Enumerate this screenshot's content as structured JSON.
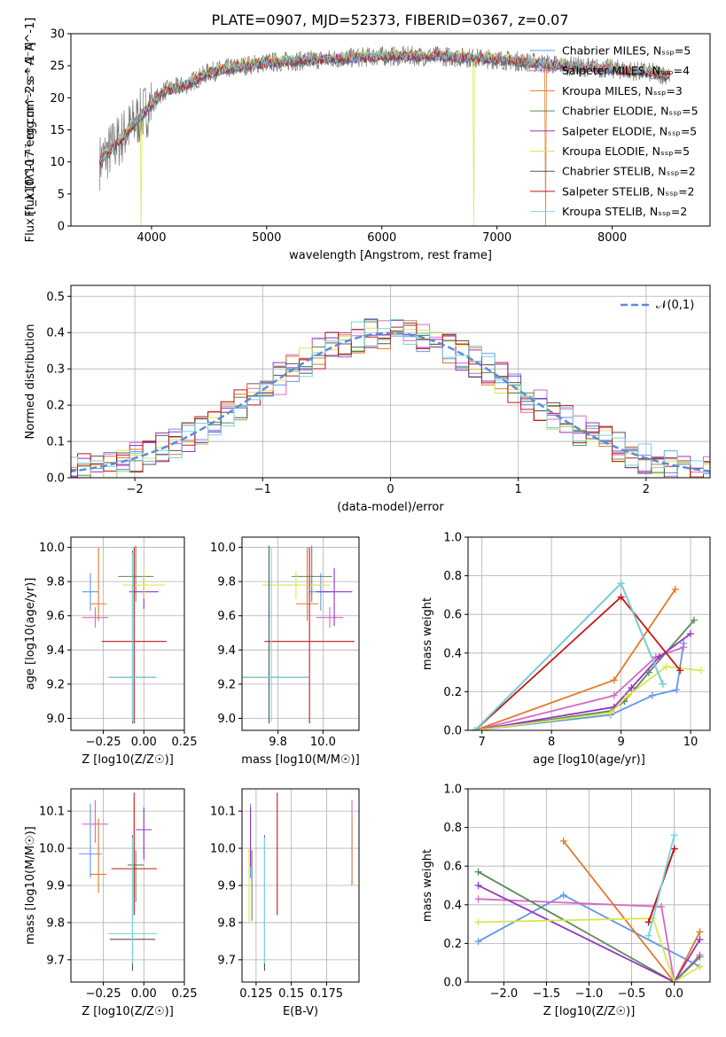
{
  "title": "PLATE=0907, MJD=52373, FIBERID=0367, z=0.07",
  "colors": {
    "chabrier_miles": "#6495ed",
    "salpeter_miles": "#d967c9",
    "kroupa_miles": "#e2782a",
    "chabrier_elodie": "#5a8a57",
    "salpeter_elodie": "#9434c2",
    "kroupa_elodie": "#d7e84f",
    "chabrier_stelib": "#555555",
    "salpeter_stelib": "#c41818",
    "kroupa_stelib": "#74d4df"
  },
  "chart_data": [
    {
      "id": "spectrum",
      "type": "line",
      "title": "PLATE=0907, MJD=52373, FIBERID=0367, z=0.07",
      "xlabel": "wavelength [Angstrom, rest frame]",
      "ylabel": "Flux [f_λ10^-17 erg cm^-2 s^-1 A^-1]",
      "xlim": [
        3300,
        8850
      ],
      "ylim": [
        0,
        30
      ],
      "xticks": [
        4000,
        5000,
        6000,
        7000,
        8000
      ],
      "yticks": [
        0,
        5,
        10,
        15,
        20,
        25,
        30
      ],
      "legend_position": "top-right",
      "legend": [
        "Chabrier MILES, N_SSP=5",
        "Salpeter MILES, N_SSP=4",
        "Kroupa MILES, N_SSP=3",
        "Chabrier ELODIE, N_SSP=5",
        "Salpeter ELODIE, N_SSP=5",
        "Kroupa ELODIE, N_SSP=5",
        "Chabrier STELIB, N_SSP=2",
        "Salpeter STELIB, N_SSP=2",
        "Kroupa STELIB, N_SSP=2"
      ],
      "continuum": {
        "x": [
          3550,
          3700,
          3800,
          3900,
          4000,
          4100,
          4300,
          4500,
          4800,
          5000,
          5500,
          6000,
          6500,
          7000,
          7300,
          7600,
          8000,
          8300,
          8500
        ],
        "y": [
          10,
          13,
          15,
          17,
          19,
          21,
          22,
          24,
          25,
          25.5,
          26,
          26.5,
          26.5,
          26,
          25.5,
          25,
          24.5,
          24,
          23.5
        ]
      },
      "dips": [
        [
          3910,
          0
        ],
        [
          6800,
          0
        ],
        [
          7420,
          0
        ]
      ]
    },
    {
      "id": "residuals",
      "type": "bar",
      "xlabel": "(data-model)/error",
      "ylabel": "Normed distribution",
      "xlim": [
        -2.5,
        2.5
      ],
      "ylim": [
        0,
        0.53
      ],
      "xticks": [
        -2,
        -1,
        0,
        1,
        2
      ],
      "yticks": [
        0,
        0.1,
        0.2,
        0.3,
        0.4,
        0.5
      ],
      "legend": [
        "𝒩(0,1)"
      ],
      "legend_position": "top-right",
      "gaussian": {
        "mean": 0,
        "sigma": 1
      }
    },
    {
      "id": "age_vs_Z",
      "type": "scatter",
      "xlabel": "Z [log10(Z/Z☉)]",
      "ylabel": "age  [log10(age/yr)]",
      "xlim": [
        -0.45,
        0.25
      ],
      "ylim": [
        8.93,
        10.06
      ],
      "xticks": [
        -0.25,
        0.0,
        0.25
      ],
      "yticks": [
        9.0,
        9.2,
        9.4,
        9.6,
        9.8,
        10.0
      ],
      "series": [
        {
          "x": -0.33,
          "y": 9.74,
          "xerr": 0.05,
          "yerr": [
            0.11,
            0.11
          ]
        },
        {
          "x": -0.3,
          "y": 9.59,
          "xerr": 0.08,
          "yerr": [
            0.06,
            0.06
          ]
        },
        {
          "x": -0.28,
          "y": 9.67,
          "xerr": 0.05,
          "yerr": [
            0.1,
            0.33
          ]
        },
        {
          "x": -0.05,
          "y": 9.83,
          "xerr": 0.11,
          "yerr": [
            0.15,
            0.18
          ]
        },
        {
          "x": 0.0,
          "y": 9.74,
          "xerr": 0.09,
          "yerr": [
            0.1,
            0.09
          ]
        },
        {
          "x": 0.0,
          "y": 9.78,
          "xerr": 0.13,
          "yerr": [
            0.08,
            0.08
          ]
        },
        {
          "x": -0.07,
          "y": 9.24,
          "xerr": 0.14,
          "yerr": [
            0.27,
            0.74
          ]
        },
        {
          "x": -0.06,
          "y": 9.45,
          "xerr": 0.2,
          "yerr": [
            0.48,
            0.55
          ]
        },
        {
          "x": -0.07,
          "y": 9.24,
          "xerr": 0.15,
          "yerr": [
            0.26,
            0.73
          ]
        }
      ]
    },
    {
      "id": "age_vs_mass",
      "type": "scatter",
      "xlabel": "mass [log10(M/M☉)]",
      "ylabel": "",
      "xlim": [
        9.64,
        10.16
      ],
      "ylim": [
        8.93,
        10.06
      ],
      "xticks": [
        9.8,
        10.0
      ],
      "yticks": [
        9.0,
        9.2,
        9.4,
        9.6,
        9.8,
        10.0
      ],
      "series": [
        {
          "x": 9.99,
          "y": 9.74,
          "xerr": 0.05,
          "yerr": [
            0.11,
            0.11
          ]
        },
        {
          "x": 10.03,
          "y": 9.59,
          "xerr": 0.06,
          "yerr": [
            0.06,
            0.06
          ]
        },
        {
          "x": 9.93,
          "y": 9.67,
          "xerr": 0.05,
          "yerr": [
            0.1,
            0.33
          ]
        },
        {
          "x": 9.95,
          "y": 9.83,
          "xerr": 0.09,
          "yerr": [
            0.15,
            0.18
          ]
        },
        {
          "x": 10.05,
          "y": 9.74,
          "xerr": 0.08,
          "yerr": [
            0.2,
            0.14
          ]
        },
        {
          "x": 9.88,
          "y": 9.78,
          "xerr": 0.15,
          "yerr": [
            0.08,
            0.08
          ]
        },
        {
          "x": 9.76,
          "y": 9.24,
          "xerr": 0.18,
          "yerr": [
            0.27,
            0.77
          ]
        },
        {
          "x": 9.94,
          "y": 9.45,
          "xerr": 0.2,
          "yerr": [
            0.48,
            0.55
          ]
        },
        {
          "x": 9.77,
          "y": 9.24,
          "xerr": 0.17,
          "yerr": [
            0.26,
            0.76
          ]
        }
      ]
    },
    {
      "id": "massweight_vs_age",
      "type": "line",
      "xlabel": "age  [log10(age/yr)]",
      "ylabel": "mass weight",
      "xlim": [
        6.8,
        10.28
      ],
      "ylim": [
        0,
        1
      ],
      "xticks": [
        7,
        8,
        9,
        10
      ],
      "yticks": [
        0.0,
        0.2,
        0.4,
        0.6,
        0.8,
        1.0
      ],
      "series": [
        {
          "x": [
            6.9,
            8.85,
            9.45,
            9.8,
            9.9
          ],
          "y": [
            0.0,
            0.08,
            0.18,
            0.21,
            0.45
          ]
        },
        {
          "x": [
            6.9,
            8.9,
            9.5,
            9.9
          ],
          "y": [
            0.0,
            0.18,
            0.38,
            0.43
          ]
        },
        {
          "x": [
            6.9,
            8.9,
            9.78
          ],
          "y": [
            0.0,
            0.26,
            0.73
          ]
        },
        {
          "x": [
            6.9,
            8.85,
            9.05,
            9.4,
            10.05
          ],
          "y": [
            0.0,
            0.1,
            0.15,
            0.3,
            0.57
          ]
        },
        {
          "x": [
            6.9,
            8.9,
            9.15,
            9.55,
            10.0
          ],
          "y": [
            0.0,
            0.12,
            0.22,
            0.38,
            0.5
          ]
        },
        {
          "x": [
            6.9,
            8.85,
            9.1,
            9.65,
            10.15
          ],
          "y": [
            0.0,
            0.09,
            0.18,
            0.33,
            0.31
          ]
        },
        {
          "x": [
            6.9,
            9.0,
            9.6
          ],
          "y": [
            0.0,
            0.76,
            0.24
          ]
        },
        {
          "x": [
            6.9,
            9.0,
            9.85
          ],
          "y": [
            0.0,
            0.69,
            0.31
          ]
        },
        {
          "x": [
            6.9,
            9.0,
            9.6
          ],
          "y": [
            0.0,
            0.76,
            0.24
          ]
        }
      ]
    },
    {
      "id": "mass_vs_Z",
      "type": "scatter",
      "xlabel": "Z [log10(Z/Z☉)]",
      "ylabel": "mass [log10(M/M☉)]",
      "xlim": [
        -0.45,
        0.25
      ],
      "ylim": [
        9.64,
        10.16
      ],
      "xticks": [
        -0.25,
        0.0,
        0.25
      ],
      "yticks": [
        9.7,
        9.8,
        9.9,
        10.0,
        10.1
      ],
      "series": [
        {
          "x": -0.33,
          "y": 9.985,
          "xerr": 0.07,
          "yerr": [
            0.065,
            0.135
          ]
        },
        {
          "x": -0.3,
          "y": 10.065,
          "xerr": 0.08,
          "yerr": [
            0.05,
            0.065
          ]
        },
        {
          "x": -0.28,
          "y": 9.93,
          "xerr": 0.05,
          "yerr": [
            0.05,
            0.15
          ]
        },
        {
          "x": -0.05,
          "y": 9.955,
          "xerr": 0.05,
          "yerr": [
            0.1,
            0.04
          ]
        },
        {
          "x": 0.0,
          "y": 10.05,
          "xerr": 0.05,
          "yerr": [
            0.08,
            0.06
          ]
        },
        {
          "x": -0.06,
          "y": 9.94,
          "xerr": 0.01,
          "yerr": [
            0.06,
            0.02
          ]
        },
        {
          "x": -0.07,
          "y": 9.755,
          "xerr": 0.14,
          "yerr": [
            0.085,
            0.28
          ]
        },
        {
          "x": -0.06,
          "y": 9.945,
          "xerr": 0.14,
          "yerr": [
            0.125,
            0.205
          ]
        },
        {
          "x": -0.07,
          "y": 9.77,
          "xerr": 0.15,
          "yerr": [
            0.08,
            0.26
          ]
        }
      ]
    },
    {
      "id": "mass_vs_EBV",
      "type": "scatter",
      "xlabel": "E(B-V)",
      "ylabel": "",
      "xlim": [
        0.115,
        0.198
      ],
      "ylim": [
        9.64,
        10.16
      ],
      "xticks": [
        0.125,
        0.15,
        0.175
      ],
      "yticks": [
        9.7,
        9.8,
        9.9,
        10.0,
        10.1
      ],
      "series": [
        {
          "x": 0.121,
          "y": 9.985,
          "yerr": [
            0.065,
            0.135
          ]
        },
        {
          "x": 0.193,
          "y": 10.065,
          "yerr": [
            0.16,
            0.065
          ]
        },
        {
          "x": 0.193,
          "y": 9.93,
          "yerr": [
            0.03,
            0.15
          ]
        },
        {
          "x": 0.122,
          "y": 9.955,
          "yerr": [
            0.15,
            0.04
          ]
        },
        {
          "x": 0.121,
          "y": 10.05,
          "yerr": [
            0.1,
            0.06
          ]
        },
        {
          "x": 0.12,
          "y": 9.94,
          "yerr": [
            0.14,
            0.06
          ]
        },
        {
          "x": 0.131,
          "y": 9.755,
          "yerr": [
            0.085,
            0.28
          ]
        },
        {
          "x": 0.14,
          "y": 9.945,
          "yerr": [
            0.125,
            0.205
          ]
        },
        {
          "x": 0.131,
          "y": 9.77,
          "yerr": [
            0.08,
            0.26
          ]
        }
      ]
    },
    {
      "id": "massweight_vs_Z",
      "type": "line",
      "xlabel": "Z [log10(Z/Z☉)]",
      "ylabel": "mass weight",
      "xlim": [
        -2.42,
        0.42
      ],
      "ylim": [
        0,
        1
      ],
      "xticks": [
        -2.0,
        -1.5,
        -1.0,
        -0.5,
        0.0
      ],
      "yticks": [
        0.0,
        0.2,
        0.4,
        0.6,
        0.8,
        1.0
      ],
      "series": [
        {
          "x": [
            -2.3,
            -1.3,
            0.3
          ],
          "y": [
            0.21,
            0.45,
            0.08
          ]
        },
        {
          "x": [
            -2.3,
            -0.15,
            0.0,
            0.3
          ],
          "y": [
            0.43,
            0.39,
            0.0,
            0.14
          ]
        },
        {
          "x": [
            -1.3,
            0.0,
            0.3
          ],
          "y": [
            0.73,
            0.0,
            0.26
          ]
        },
        {
          "x": [
            -2.3,
            0.0,
            0.3
          ],
          "y": [
            0.57,
            0.0,
            0.13
          ]
        },
        {
          "x": [
            -2.3,
            0.0,
            0.3
          ],
          "y": [
            0.5,
            0.0,
            0.22
          ]
        },
        {
          "x": [
            -2.3,
            -0.25,
            0.0,
            0.3
          ],
          "y": [
            0.31,
            0.33,
            0.0,
            0.08
          ]
        },
        {
          "x": [
            -0.3,
            0.0
          ],
          "y": [
            0.31,
            0.69
          ]
        },
        {
          "x": [
            -0.3,
            0.0
          ],
          "y": [
            0.31,
            0.69
          ]
        },
        {
          "x": [
            -0.3,
            0.0
          ],
          "y": [
            0.24,
            0.76
          ]
        }
      ]
    }
  ]
}
